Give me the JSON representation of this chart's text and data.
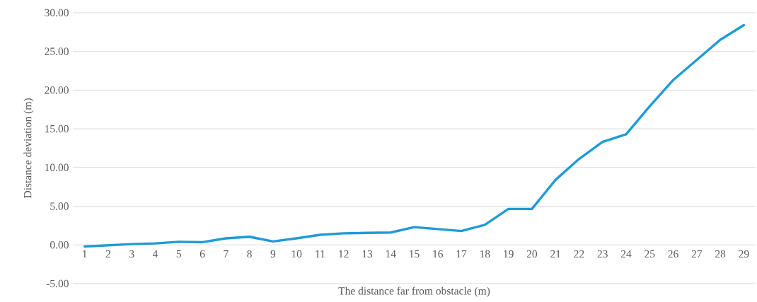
{
  "chart_data": {
    "type": "line",
    "xlabel": "The distance far from obstacle (m)",
    "ylabel": "Distance deviation  (m)",
    "categories": [
      "1",
      "2",
      "3",
      "4",
      "5",
      "6",
      "7",
      "8",
      "9",
      "10",
      "11",
      "12",
      "13",
      "14",
      "15",
      "16",
      "17",
      "18",
      "19",
      "20",
      "21",
      "22",
      "23",
      "24",
      "25",
      "26",
      "27",
      "28",
      "29"
    ],
    "series": [
      {
        "color": "#1f9bd7",
        "values": [
          -0.2,
          -0.05,
          0.1,
          0.2,
          0.4,
          0.35,
          0.85,
          1.05,
          0.45,
          0.85,
          1.3,
          1.5,
          1.55,
          1.6,
          2.3,
          2.05,
          1.8,
          2.6,
          4.65,
          4.65,
          8.4,
          11.1,
          13.3,
          14.3,
          17.9,
          21.3,
          23.9,
          26.5,
          28.4
        ]
      }
    ],
    "ylim": [
      -5,
      30
    ],
    "yticks": [
      {
        "value": -5,
        "label": "-5.00"
      },
      {
        "value": 0,
        "label": "0.00"
      },
      {
        "value": 5,
        "label": "5.00"
      },
      {
        "value": 10,
        "label": "10.00"
      },
      {
        "value": 15,
        "label": "15.00"
      },
      {
        "value": 20,
        "label": "20.00"
      },
      {
        "value": 25,
        "label": "25.00"
      },
      {
        "value": 30,
        "label": "30.00"
      }
    ],
    "grid": "y",
    "legend": false,
    "marker": "none",
    "line_style": "solid"
  }
}
